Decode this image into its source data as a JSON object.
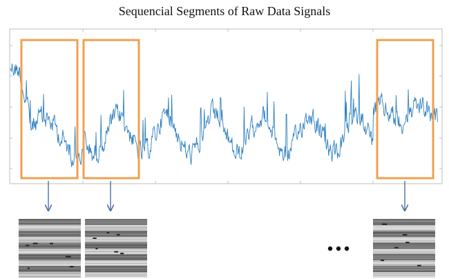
{
  "title": "Sequencial Segments of Raw Data Signals"
}
